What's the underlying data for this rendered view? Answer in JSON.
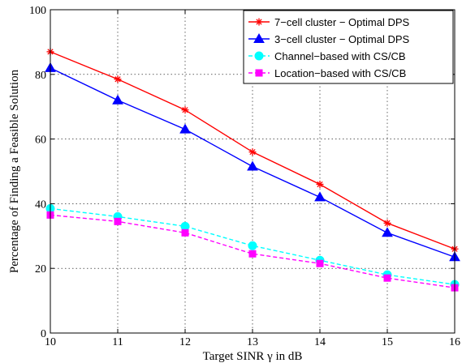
{
  "chart_data": {
    "type": "line",
    "xlabel": "Target SINR γ in dB",
    "ylabel": "Percentage of Finding a Feasible Solution",
    "xlim": [
      10,
      16
    ],
    "ylim": [
      0,
      100
    ],
    "x_ticks": [
      "10",
      "11",
      "12",
      "13",
      "14",
      "15",
      "16"
    ],
    "y_ticks": [
      "0",
      "20",
      "40",
      "60",
      "80",
      "100"
    ],
    "grid": true,
    "legend_position": "top-right",
    "x": [
      10,
      11,
      12,
      13,
      14,
      15,
      16
    ],
    "series": [
      {
        "name": "7−cell cluster − Optimal DPS",
        "color": "#ff0000",
        "marker": "star",
        "line": "solid",
        "values": [
          87,
          78.5,
          69,
          56,
          46,
          34,
          26
        ]
      },
      {
        "name": "3−cell cluster − Optimal DPS",
        "color": "#0000ff",
        "marker": "triangle",
        "line": "solid",
        "values": [
          82,
          72,
          63,
          51.5,
          42,
          31,
          23.5
        ]
      },
      {
        "name": "Channel−based with CS/CB",
        "color": "#00ffff",
        "marker": "circle",
        "line": "dashed",
        "values": [
          38.5,
          36,
          33,
          27,
          22.5,
          18,
          15
        ]
      },
      {
        "name": "Location−based with CS/CB",
        "color": "#ff00ff",
        "marker": "square",
        "line": "dashed",
        "values": [
          36.5,
          34.5,
          31,
          24.5,
          21.5,
          17,
          14
        ]
      }
    ]
  }
}
